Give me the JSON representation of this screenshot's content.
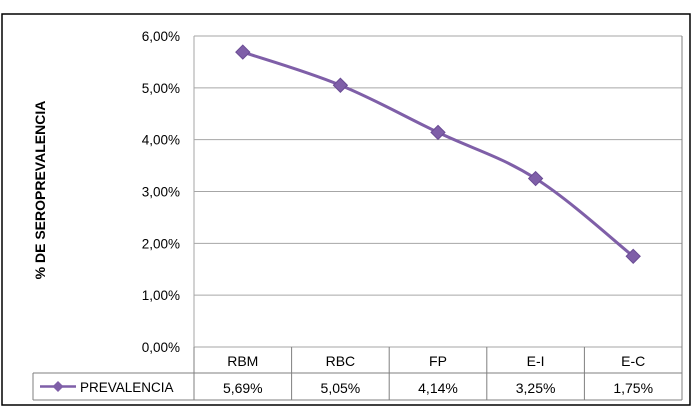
{
  "chart_data": {
    "type": "line",
    "categories": [
      "RBM",
      "RBC",
      "FP",
      "E-I",
      "E-C"
    ],
    "series": [
      {
        "name": "PREVALENCIA",
        "values": [
          5.69,
          5.05,
          4.14,
          3.25,
          1.75
        ]
      }
    ],
    "table_values": [
      "5,69%",
      "5,05%",
      "4,14%",
      "3,25%",
      "1,75%"
    ],
    "ylabel": "% DE SEROPREVALENCIA",
    "yticks": [
      "0,00%",
      "1,00%",
      "2,00%",
      "3,00%",
      "4,00%",
      "5,00%",
      "6,00%"
    ],
    "ylim": [
      0,
      6
    ],
    "grid": true,
    "legend": "data-table-left",
    "colors": {
      "series": "#7F5FA8",
      "grid": "#A6A6A6",
      "border": "#000000"
    }
  }
}
